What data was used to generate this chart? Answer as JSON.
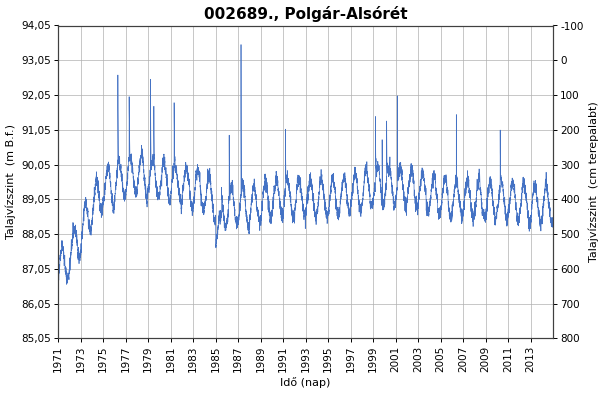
{
  "title": "002689., Polgár-Alsórét",
  "xlabel": "Idő (nap)",
  "ylabel_left": "Talajvízszint  (m B.f.)",
  "ylabel_right": "Talajvízszint  (cm terepalabt)",
  "ylim_left": [
    85.05,
    94.05
  ],
  "ylim_right": [
    800,
    -100
  ],
  "yticks_left": [
    85.05,
    86.05,
    87.05,
    88.05,
    89.05,
    90.05,
    91.05,
    92.05,
    93.05,
    94.05
  ],
  "yticks_right": [
    800,
    700,
    600,
    500,
    400,
    300,
    200,
    100,
    0,
    -100
  ],
  "xtick_years": [
    1971,
    1973,
    1975,
    1977,
    1979,
    1981,
    1983,
    1985,
    1987,
    1989,
    1991,
    1993,
    1995,
    1997,
    1999,
    2001,
    2003,
    2005,
    2007,
    2009,
    2011,
    2013
  ],
  "line_color": "#4472c4",
  "line_width": 0.5,
  "background_color": "#ffffff",
  "grid_color": "#b0b0b0",
  "title_fontsize": 11,
  "axis_label_fontsize": 8,
  "tick_fontsize": 7.5,
  "figsize": [
    6.05,
    3.94
  ],
  "dpi": 100
}
